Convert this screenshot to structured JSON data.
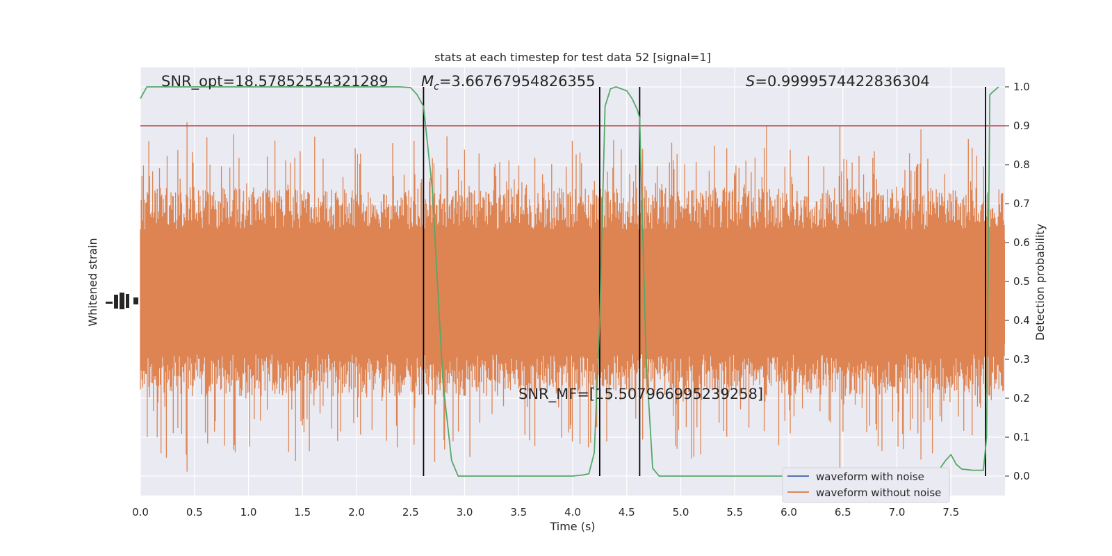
{
  "chart_data": {
    "type": "line",
    "title": "stats at each timestep for test data 52 [signal=1]",
    "xlabel": "Time (s)",
    "ylabel_left": "Whitened strain",
    "ylabel_right": "Detection probability",
    "xlim": [
      0.0,
      8.0
    ],
    "ylim_right": [
      -0.05,
      1.05
    ],
    "x_ticks": [
      "0.0",
      "0.5",
      "1.0",
      "1.5",
      "2.0",
      "2.5",
      "3.0",
      "3.5",
      "4.0",
      "4.5",
      "5.0",
      "5.5",
      "6.0",
      "6.5",
      "7.0",
      "7.5"
    ],
    "x_tick_values": [
      0.0,
      0.5,
      1.0,
      1.5,
      2.0,
      2.5,
      3.0,
      3.5,
      4.0,
      4.5,
      5.0,
      5.5,
      6.0,
      6.5,
      7.0,
      7.5
    ],
    "right_ticks": [
      "0.0",
      "0.1",
      "0.2",
      "0.3",
      "0.4",
      "0.5",
      "0.6",
      "0.7",
      "0.8",
      "0.9",
      "1.0"
    ],
    "right_tick_values": [
      0.0,
      0.1,
      0.2,
      0.3,
      0.4,
      0.5,
      0.6,
      0.7,
      0.8,
      0.9,
      1.0
    ],
    "grid": true,
    "annotations": {
      "snr_opt": "SNR_opt=18.57852554321289",
      "mc_symbol": "M",
      "mc_subscript": "c",
      "mc_value": "=3.66767954826355",
      "s_symbol": "S",
      "s_value": "=0.9999574422836304",
      "snr_mf": "SNR_MF=[15.507966995239258]"
    },
    "threshold": {
      "value": 0.9,
      "color": "#c03d3e"
    },
    "vertical_lines_x": [
      2.62,
      4.25,
      4.62,
      7.82
    ],
    "legend_position": "lower-right",
    "series": [
      {
        "name": "waveform with noise",
        "color": "#4c72b0",
        "values": []
      },
      {
        "name": "waveform without noise",
        "color": "#dd8452",
        "values": []
      }
    ],
    "detection_probability": {
      "color": "#55a868",
      "x": [
        0.0,
        0.06,
        0.12,
        0.5,
        1.0,
        1.5,
        2.0,
        2.4,
        2.5,
        2.56,
        2.6,
        2.62,
        2.7,
        2.8,
        2.88,
        2.94,
        3.0,
        3.1,
        3.2,
        3.4,
        3.6,
        3.8,
        4.0,
        4.1,
        4.15,
        4.2,
        4.25,
        4.3,
        4.35,
        4.4,
        4.5,
        4.55,
        4.6,
        4.62,
        4.68,
        4.74,
        4.8,
        4.9,
        5.2,
        5.6,
        6.0,
        6.4,
        6.8,
        7.0,
        7.2,
        7.3,
        7.35,
        7.4,
        7.45,
        7.5,
        7.55,
        7.6,
        7.7,
        7.8,
        7.83,
        7.86,
        7.9,
        7.94
      ],
      "y": [
        0.97,
        1.0,
        1.0,
        1.0,
        1.0,
        1.0,
        1.0,
        1.0,
        0.998,
        0.98,
        0.96,
        0.95,
        0.74,
        0.24,
        0.04,
        0.0,
        0.0,
        0.0,
        0.0,
        0.0,
        0.0,
        0.0,
        0.0,
        0.003,
        0.006,
        0.06,
        0.4,
        0.95,
        0.995,
        1.0,
        0.99,
        0.97,
        0.94,
        0.92,
        0.3,
        0.02,
        0.0,
        0.0,
        0.0,
        0.0,
        0.0,
        0.0,
        0.0,
        0.0,
        0.0,
        0.002,
        0.005,
        0.02,
        0.04,
        0.055,
        0.03,
        0.018,
        0.015,
        0.015,
        0.1,
        0.98,
        0.99,
        1.0
      ]
    }
  }
}
